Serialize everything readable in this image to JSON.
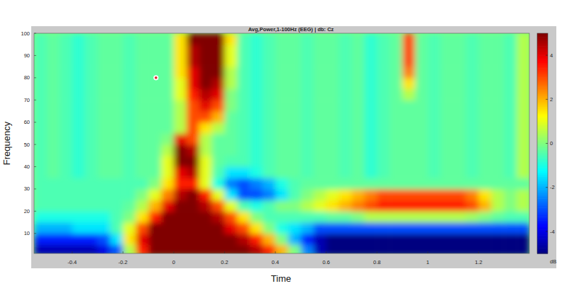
{
  "chart_data": {
    "type": "heatmap",
    "title": "Avg,Power,1-100Hz (EEG) | db: Cz",
    "x_label": "Time",
    "y_label": "Frequency",
    "xlim": [
      -0.55,
      1.4
    ],
    "ylim": [
      1,
      100
    ],
    "xticks": [
      -0.4,
      -0.2,
      0,
      0.2,
      0.4,
      0.6,
      0.8,
      1,
      1.2
    ],
    "yticks": [
      10,
      20,
      30,
      40,
      50,
      60,
      70,
      80,
      90,
      100
    ],
    "x": [
      -0.525,
      -0.475,
      -0.425,
      -0.375,
      -0.325,
      -0.275,
      -0.225,
      -0.175,
      -0.125,
      -0.075,
      -0.025,
      0.025,
      0.075,
      0.125,
      0.175,
      0.225,
      0.275,
      0.325,
      0.375,
      0.425,
      0.475,
      0.525,
      0.575,
      0.625,
      0.675,
      0.725,
      0.775,
      0.825,
      0.875,
      0.925,
      0.975,
      1.025,
      1.075,
      1.125,
      1.175,
      1.225,
      1.275,
      1.325,
      1.375
    ],
    "y": [
      2.5,
      7.5,
      12.5,
      17.5,
      22.5,
      27.5,
      32.5,
      37.5,
      42.5,
      47.5,
      52.5,
      57.5,
      62.5,
      67.5,
      72.5,
      77.5,
      82.5,
      87.5,
      92.5,
      97.5
    ],
    "values": [
      [
        -4.5,
        -4.5,
        -4.5,
        -4.5,
        -4.5,
        -4,
        -3,
        0.5,
        3.5,
        5,
        5,
        5,
        5,
        5,
        5,
        5,
        5,
        4.5,
        3.5,
        2,
        0,
        -2.5,
        -4.5,
        -5,
        -5,
        -5,
        -5,
        -5,
        -5,
        -5,
        -5,
        -5,
        -5,
        -5,
        -5,
        -5,
        -5,
        -5,
        -5
      ],
      [
        -3.5,
        -3.5,
        -3.5,
        -3.5,
        -3.5,
        -3,
        -1.5,
        1.5,
        4,
        5,
        5,
        5,
        5,
        5,
        5,
        5,
        4.5,
        3.5,
        2,
        0,
        -2,
        -3.5,
        -4.5,
        -5,
        -5,
        -5,
        -5,
        -5,
        -5,
        -5,
        -5,
        -5,
        -5,
        -5,
        -5,
        -5,
        -5,
        -5,
        -5
      ],
      [
        -2,
        -2,
        -2,
        -1.5,
        -1.5,
        -1.5,
        -0.5,
        1,
        3,
        5,
        5,
        5,
        5,
        5,
        5,
        4,
        3,
        1.5,
        0,
        -1,
        -1.5,
        -2,
        -3,
        -3,
        -3,
        -3,
        -3,
        -3,
        -3,
        -3,
        -3,
        -3,
        -3,
        -3,
        -3,
        -3,
        -3,
        -3,
        -3
      ],
      [
        -1,
        -1,
        -1,
        -1,
        -1,
        -1,
        -0.5,
        0,
        1.5,
        3.5,
        5,
        5,
        5,
        5,
        4.5,
        3,
        1.5,
        0,
        -0.5,
        -0.5,
        -0.5,
        -0.5,
        -0.5,
        -0.3,
        -0.3,
        0,
        0.5,
        0.5,
        0.5,
        0.5,
        0.5,
        0.5,
        0.5,
        0.5,
        0.3,
        0,
        -0.3,
        -0.5,
        -0.5
      ],
      [
        -0.5,
        -0.5,
        -0.5,
        -0.5,
        -0.5,
        -0.5,
        -0.5,
        -0.3,
        0.5,
        2,
        4,
        5,
        5,
        4.5,
        3,
        1,
        -0.5,
        -1,
        -0.5,
        0,
        0,
        0.5,
        1,
        1.5,
        2,
        2.5,
        3,
        3.5,
        3.5,
        3.5,
        3.5,
        3.5,
        3.5,
        3.5,
        3,
        2,
        0.5,
        0,
        0.5
      ],
      [
        -0.5,
        -0.5,
        -0.5,
        -0.5,
        -0.5,
        -0.5,
        -0.5,
        -0.5,
        0,
        1,
        2.5,
        4.5,
        5,
        3.5,
        1,
        -1.5,
        -3,
        -3,
        -2.5,
        -1.5,
        -0.5,
        0,
        0.5,
        1,
        1.5,
        2,
        2.5,
        3,
        3,
        3,
        3,
        3,
        3,
        3,
        2.5,
        1.5,
        0.5,
        0,
        0.5
      ],
      [
        -0.5,
        -0.5,
        -0.5,
        -0.5,
        -0.5,
        -0.5,
        -0.5,
        -0.5,
        -0.5,
        0,
        1.5,
        3.5,
        3.5,
        1,
        -1,
        -2.5,
        -3,
        -2.5,
        -2,
        -1,
        -0.5,
        -0.3,
        -0.3,
        -0.3,
        -0.3,
        -0.3,
        -0.3,
        -0.3,
        -0.3,
        -0.3,
        -0.3,
        -0.3,
        -0.3,
        -0.3,
        -0.3,
        -0.3,
        -0.3,
        -0.3,
        -0.3
      ],
      [
        -0.5,
        -0.3,
        -0.5,
        -0.8,
        -0.5,
        -0.3,
        -0.3,
        -0.5,
        -0.3,
        -0.3,
        1,
        4,
        4.5,
        1,
        -0.5,
        -1.5,
        -1.5,
        -1,
        -0.5,
        -0.3,
        -0.3,
        -0.5,
        -0.3,
        -0.3,
        -0.5,
        -0.3,
        -0.8,
        -0.5,
        -0.3,
        -0.3,
        -0.3,
        -0.5,
        -0.3,
        -0.3,
        -0.5,
        -0.3,
        -0.3,
        -0.5,
        0.5
      ],
      [
        -0.5,
        -0.3,
        -0.5,
        -0.8,
        -0.5,
        -0.3,
        -0.3,
        -0.5,
        -0.3,
        -0.3,
        1,
        5,
        5,
        1,
        -0.3,
        -0.5,
        -0.5,
        -0.8,
        -0.5,
        -0.3,
        -0.3,
        -0.5,
        -0.3,
        -0.3,
        -0.5,
        -0.3,
        -0.8,
        -0.5,
        -0.3,
        -0.3,
        -0.3,
        -0.5,
        -0.3,
        -0.3,
        -0.5,
        -0.3,
        -0.3,
        -0.5,
        0.5
      ],
      [
        -0.5,
        -0.3,
        -0.5,
        -0.8,
        -0.5,
        -0.3,
        -0.3,
        -0.5,
        -0.3,
        -0.3,
        0.5,
        5,
        4.5,
        0.5,
        -0.3,
        -0.3,
        -0.5,
        -0.8,
        -0.5,
        -0.3,
        -0.3,
        -0.5,
        -0.3,
        -0.3,
        -0.5,
        -0.3,
        -0.8,
        -0.5,
        -0.3,
        -0.3,
        -0.3,
        -0.5,
        -0.3,
        -0.3,
        -0.5,
        -0.3,
        -0.3,
        -0.5,
        0.5
      ],
      [
        -0.5,
        -0.3,
        -0.5,
        -0.8,
        -0.5,
        -0.3,
        -0.3,
        -0.5,
        -0.3,
        -0.3,
        0,
        4,
        3,
        0.5,
        -0.3,
        -0.3,
        -0.5,
        -0.8,
        -0.5,
        -0.3,
        -0.3,
        -0.5,
        -0.3,
        -0.3,
        -0.5,
        -0.3,
        -0.8,
        -0.5,
        -0.3,
        -0.3,
        -0.3,
        -0.5,
        -0.3,
        -0.3,
        -0.5,
        -0.3,
        -0.3,
        -0.5,
        0.5
      ],
      [
        -0.5,
        -0.3,
        -0.5,
        -0.8,
        -0.5,
        -0.3,
        -0.3,
        -0.5,
        -0.3,
        -0.3,
        -0.3,
        0.5,
        3,
        1.5,
        0.5,
        -0.3,
        -0.5,
        -0.8,
        -0.5,
        -0.3,
        -0.3,
        -0.5,
        -0.3,
        -0.3,
        -0.5,
        -0.3,
        -0.8,
        -0.5,
        -0.3,
        -0.3,
        -0.3,
        -0.5,
        -0.3,
        -0.3,
        -0.5,
        -0.3,
        -0.3,
        -0.5,
        0.5
      ],
      [
        -0.5,
        -0.3,
        -0.5,
        -0.8,
        -0.5,
        -0.3,
        -0.3,
        -0.5,
        -0.3,
        -0.3,
        -0.3,
        0.5,
        3,
        3,
        2,
        -0.3,
        -0.5,
        -0.8,
        -0.5,
        -0.3,
        -0.3,
        -0.5,
        -0.3,
        -0.3,
        -0.5,
        -0.3,
        -0.8,
        -0.5,
        -0.3,
        -0.3,
        -0.3,
        -0.5,
        -0.3,
        -0.3,
        -0.5,
        -0.3,
        -0.3,
        -0.5,
        0.5
      ],
      [
        -0.5,
        -0.3,
        -0.5,
        -0.8,
        -0.5,
        -0.3,
        -0.3,
        -0.5,
        -0.3,
        -0.3,
        -0.3,
        0.5,
        3,
        4,
        3,
        0,
        -0.5,
        -0.8,
        -0.5,
        -0.3,
        -0.3,
        -0.5,
        -0.3,
        -0.3,
        -0.5,
        -0.3,
        -0.8,
        -0.5,
        -0.3,
        -0.3,
        -0.3,
        -0.5,
        -0.3,
        -0.3,
        -0.5,
        -0.3,
        -0.3,
        -0.5,
        0.5
      ],
      [
        -0.5,
        -0.3,
        -0.5,
        -0.8,
        -0.5,
        -0.3,
        -0.3,
        -0.5,
        -0.3,
        -0.3,
        -0.3,
        1,
        3.5,
        4.5,
        4,
        0,
        -0.5,
        -0.8,
        -0.5,
        -0.3,
        -0.3,
        -0.5,
        -0.3,
        -0.3,
        -0.5,
        -0.3,
        -0.8,
        -0.5,
        -0.3,
        0.5,
        -0.3,
        -0.5,
        -0.3,
        -0.3,
        -0.5,
        -0.3,
        -0.3,
        -0.5,
        0.5
      ],
      [
        -0.5,
        -0.3,
        -0.5,
        -0.8,
        -0.5,
        -0.3,
        -0.3,
        -0.5,
        -0.3,
        -0.3,
        -0.3,
        1,
        4,
        5,
        4.5,
        0.5,
        -0.5,
        -0.8,
        -0.5,
        -0.3,
        -0.3,
        -0.5,
        -0.3,
        -0.3,
        -0.5,
        -0.3,
        -0.8,
        -0.5,
        -0.3,
        1.5,
        -0.3,
        -0.5,
        -0.3,
        -0.3,
        -0.5,
        -0.3,
        -0.3,
        -0.5,
        0.5
      ],
      [
        -0.5,
        -0.3,
        -0.5,
        -0.8,
        -0.5,
        -0.3,
        -0.3,
        -0.5,
        -0.3,
        -0.3,
        -0.3,
        1.5,
        4,
        5,
        5,
        0.5,
        -0.5,
        -0.8,
        -0.5,
        -0.3,
        -0.3,
        -0.5,
        -0.3,
        -0.3,
        -0.5,
        -0.3,
        -0.8,
        -0.5,
        -0.3,
        2.5,
        -0.3,
        -0.5,
        -0.3,
        -0.3,
        -0.5,
        -0.3,
        -0.3,
        -0.5,
        0.5
      ],
      [
        -0.5,
        -0.3,
        -0.5,
        -0.8,
        -0.5,
        -0.3,
        -0.3,
        -0.5,
        -0.3,
        -0.3,
        -0.3,
        1.5,
        4.5,
        5,
        5,
        1,
        -0.5,
        -0.8,
        -0.5,
        -0.3,
        -0.3,
        -0.5,
        -0.3,
        -0.3,
        -0.5,
        -0.3,
        -0.8,
        -0.5,
        -0.3,
        3,
        -0.3,
        -0.5,
        -0.3,
        -0.3,
        -0.5,
        -0.3,
        -0.3,
        -0.5,
        0.5
      ],
      [
        -0.5,
        -0.3,
        -0.5,
        -0.8,
        -0.5,
        -0.3,
        -0.3,
        -0.5,
        -0.3,
        -0.3,
        -0.3,
        1.5,
        4.5,
        5,
        5,
        1,
        -0.5,
        -0.8,
        -0.5,
        -0.3,
        -0.3,
        -0.5,
        -0.3,
        -0.3,
        -0.5,
        -0.3,
        -0.8,
        -0.5,
        -0.3,
        3,
        -0.3,
        -0.5,
        -0.3,
        -0.3,
        -0.5,
        -0.3,
        -0.3,
        -0.5,
        0.5
      ],
      [
        -0.5,
        -0.3,
        -0.5,
        -0.8,
        -0.5,
        -0.3,
        -0.3,
        -0.5,
        -0.3,
        -0.3,
        -0.3,
        1.5,
        5,
        5,
        5,
        1.5,
        -0.5,
        -0.8,
        -0.5,
        -0.3,
        -0.3,
        -0.5,
        -0.3,
        -0.3,
        -0.5,
        -0.3,
        -0.8,
        -0.5,
        -0.3,
        3,
        -0.3,
        -0.5,
        -0.3,
        -0.3,
        -0.5,
        -0.3,
        -0.3,
        -0.5,
        0.5
      ]
    ],
    "colorbar": {
      "lim": [
        -5,
        5
      ],
      "ticks": [
        -4,
        -2,
        0,
        2,
        4
      ],
      "label": "dB"
    },
    "points": [
      {
        "x": -0.07,
        "y": 80
      }
    ]
  }
}
